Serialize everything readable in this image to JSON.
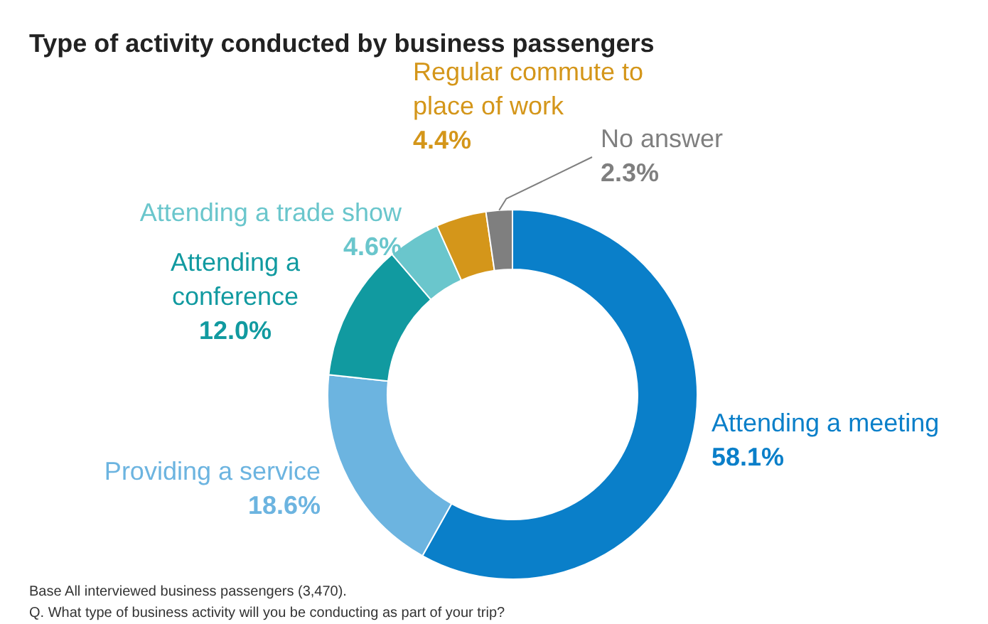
{
  "chart_data": {
    "type": "donut",
    "title": "Type of activity conducted by business passengers",
    "categories": [
      "Attending a meeting",
      "Providing a service",
      "Attending a conference",
      "Attending a trade show",
      "Regular commute to place of work",
      "No answer"
    ],
    "values": [
      58.1,
      18.6,
      12.0,
      4.6,
      4.4,
      2.3
    ],
    "colors": [
      "#0a7fc9",
      "#6cb4e0",
      "#119aa0",
      "#6ac6cc",
      "#d4961a",
      "#7f7f7f"
    ],
    "value_labels": [
      "58.1%",
      "18.6%",
      "12.0%",
      "4.6%",
      "4.4%",
      "2.3%"
    ],
    "annotations": [
      "Base All interviewed business passengers (3,470).",
      "Q. What type of business activity will you be conducting as part of your trip?"
    ]
  }
}
